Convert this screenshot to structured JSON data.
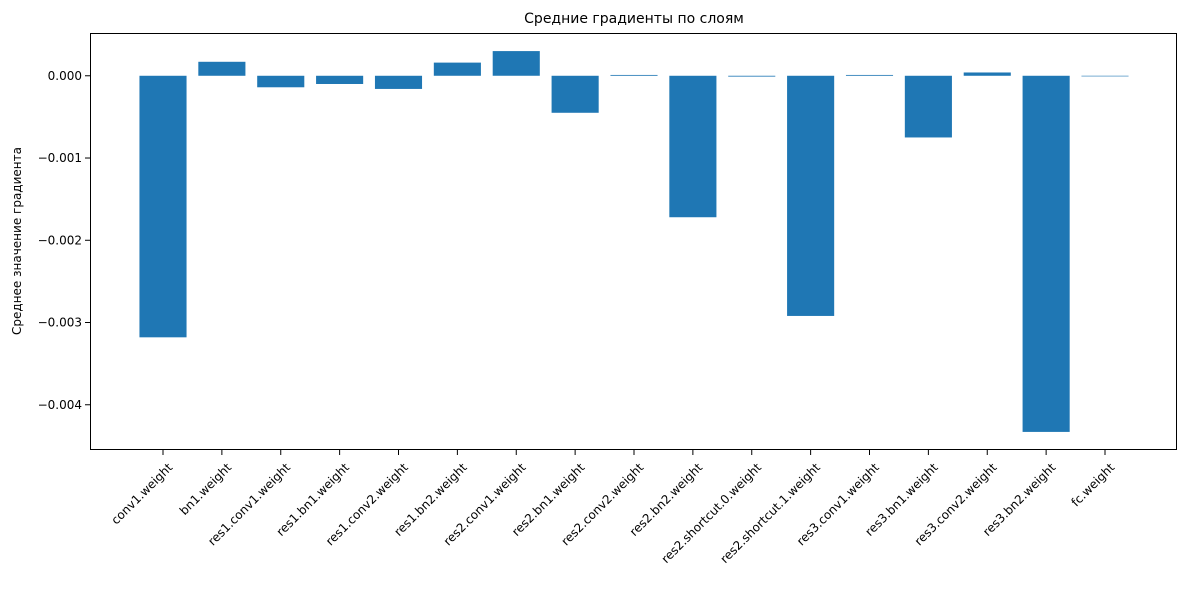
{
  "chart_data": {
    "type": "bar",
    "title": "Средние градиенты по слоям",
    "xlabel": "",
    "ylabel": "Среднее значение градиента",
    "ylim": [
      -0.00455,
      0.00052
    ],
    "yticks": [
      0.0,
      -0.001,
      -0.002,
      -0.003,
      -0.004
    ],
    "ytick_labels": [
      "0.000",
      "−0.001",
      "−0.002",
      "−0.003",
      "−0.004"
    ],
    "grid": false,
    "bar_color": "#1f77b4",
    "categories": [
      "conv1.weight",
      "bn1.weight",
      "res1.conv1.weight",
      "res1.bn1.weight",
      "res1.conv2.weight",
      "res1.bn2.weight",
      "res2.conv1.weight",
      "res2.bn1.weight",
      "res2.conv2.weight",
      "res2.bn2.weight",
      "res2.shortcut.0.weight",
      "res2.shortcut.1.weight",
      "res3.conv1.weight",
      "res3.bn1.weight",
      "res3.conv2.weight",
      "res3.bn2.weight",
      "fc.weight"
    ],
    "values": [
      -0.00318,
      0.00017,
      -0.00014,
      -0.0001,
      -0.00016,
      0.00016,
      0.0003,
      -0.00045,
      1e-05,
      -0.00172,
      -1e-05,
      -0.00292,
      1e-05,
      -0.00075,
      4e-05,
      -0.00433,
      0.0
    ]
  }
}
